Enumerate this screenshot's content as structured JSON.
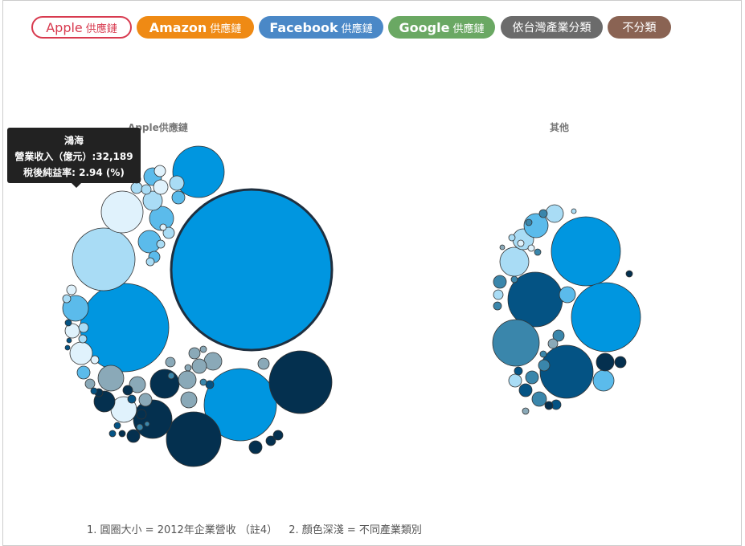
{
  "filters": [
    {
      "en": "Apple",
      "zh": "供應鏈",
      "color": "#d83a4f",
      "active": true
    },
    {
      "en": "Amazon",
      "zh": "供應鏈",
      "color": "#ef8a14"
    },
    {
      "en": "Facebook",
      "zh": "供應鏈",
      "color": "#4a88c7"
    },
    {
      "en": "Google",
      "zh": "供應鏈",
      "color": "#6aa863"
    },
    {
      "en": "",
      "zh": "依台灣產業分類",
      "color": "#6b6b6b"
    },
    {
      "en": "",
      "zh": "不分類",
      "color": "#8a6353"
    }
  ],
  "chart_data": {
    "type": "bubble",
    "groups": [
      "Apple供應鏈",
      "其他"
    ],
    "tooltip": {
      "company": "鴻海",
      "revenue_label": "營業收入（億元）",
      "revenue": "32,189",
      "margin_label": "稅後純益率",
      "margin": "2.94 (%)"
    },
    "legend_colors": [
      "#0096e0",
      "#5bbbeb",
      "#a9dcf5",
      "#e0f2fc",
      "#8aa9b8",
      "#3a86ab",
      "#045384",
      "#04304f"
    ]
  },
  "footnote": {
    "note1": "1. 圓圈大小 = 2012年企業營收 （註4）",
    "note2": "2. 顏色深淺 = 不同產業類別"
  }
}
